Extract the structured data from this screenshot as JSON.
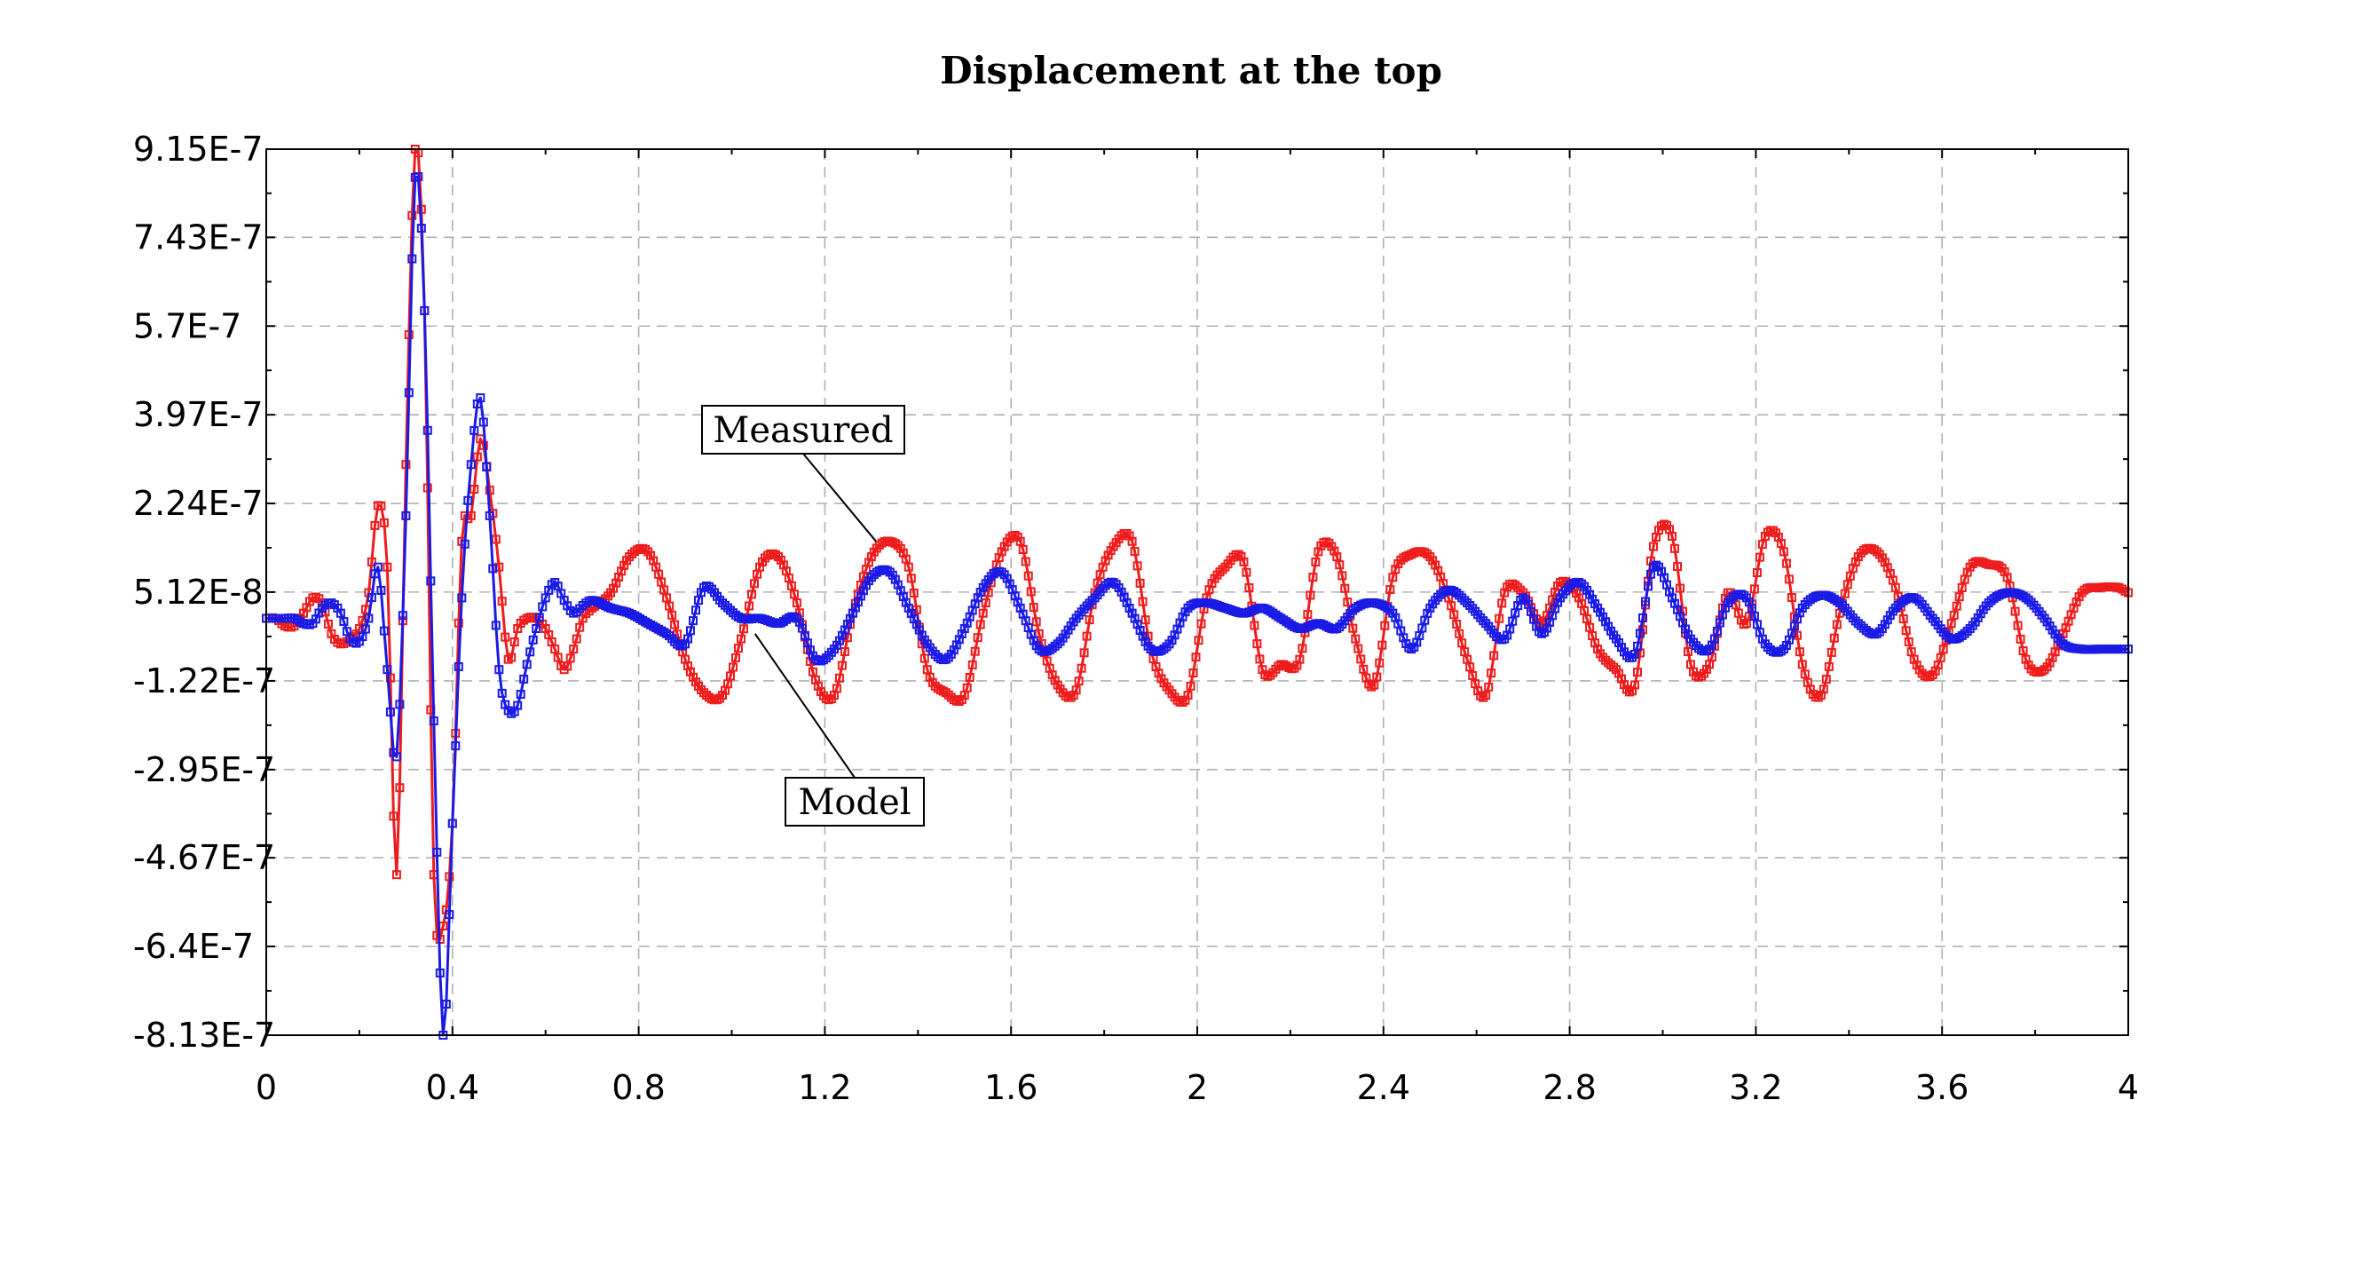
{
  "chart_data": {
    "type": "line",
    "title": "Displacement at the top",
    "xlabel": "",
    "ylabel": "",
    "xlim": [
      0,
      4
    ],
    "ylim": [
      -8.13e-07,
      9.15e-07
    ],
    "x_ticks": [
      0,
      0.4,
      0.8,
      1.2,
      1.6,
      2,
      2.4,
      2.8,
      3.2,
      3.6,
      4
    ],
    "x_tick_labels": [
      "0",
      "0.4",
      "0.8",
      "1.2",
      "1.6",
      "2",
      "2.4",
      "2.8",
      "3.2",
      "3.6",
      "4"
    ],
    "y_ticks": [
      9.15e-07,
      7.43e-07,
      5.7e-07,
      3.97e-07,
      2.24e-07,
      5.12e-08,
      -1.22e-07,
      -2.95e-07,
      -4.67e-07,
      -6.4e-07,
      -8.13e-07
    ],
    "y_tick_labels": [
      "9.15E-7",
      "7.43E-7",
      "5.7E-7",
      "3.97E-7",
      "2.24E-7",
      "5.12E-8",
      "-1.22E-7",
      "-2.95E-7",
      "-4.67E-7",
      "-6.4E-7",
      "-8.13E-7"
    ],
    "grid": true,
    "series": [
      {
        "name": "Measured",
        "color": "#ee1c1c",
        "marker": "square",
        "x": [
          0,
          0.02,
          0.04,
          0.06,
          0.08,
          0.1,
          0.12,
          0.14,
          0.16,
          0.18,
          0.2,
          0.22,
          0.24,
          0.26,
          0.28,
          0.3,
          0.32,
          0.34,
          0.36,
          0.38,
          0.4,
          0.42,
          0.44,
          0.46,
          0.48,
          0.5,
          0.52,
          0.54,
          0.56,
          0.58,
          0.6,
          0.62,
          0.64,
          0.66,
          0.68,
          0.7,
          0.74,
          0.78,
          0.82,
          0.86,
          0.9,
          0.94,
          0.98,
          1.02,
          1.06,
          1.1,
          1.14,
          1.18,
          1.22,
          1.26,
          1.3,
          1.34,
          1.38,
          1.42,
          1.46,
          1.5,
          1.54,
          1.58,
          1.62,
          1.66,
          1.7,
          1.74,
          1.78,
          1.82,
          1.86,
          1.9,
          1.94,
          1.98,
          2.02,
          2.06,
          2.1,
          2.14,
          2.18,
          2.22,
          2.26,
          2.3,
          2.34,
          2.38,
          2.42,
          2.46,
          2.5,
          2.54,
          2.58,
          2.62,
          2.66,
          2.7,
          2.74,
          2.78,
          2.82,
          2.86,
          2.9,
          2.94,
          2.98,
          3.02,
          3.06,
          3.1,
          3.14,
          3.18,
          3.22,
          3.26,
          3.3,
          3.34,
          3.38,
          3.42,
          3.46,
          3.5,
          3.54,
          3.58,
          3.62,
          3.66,
          3.7,
          3.74,
          3.78,
          3.82,
          3.86,
          3.9,
          3.94,
          3.98,
          4.0
        ],
        "y": [
          0,
          0,
          -1.5e-08,
          -1.5e-08,
          1e-08,
          4e-08,
          3e-08,
          -3e-08,
          -5e-08,
          -4e-08,
          -2e-08,
          5e-08,
          2.2e-07,
          1e-07,
          -5e-07,
          3e-07,
          9.15e-07,
          6e-07,
          -5e-07,
          -6e-07,
          -4e-07,
          1.5e-07,
          2e-07,
          3.5e-07,
          2.5e-07,
          1e-07,
          -8e-08,
          -2e-08,
          0,
          0,
          -2e-08,
          -6e-08,
          -1e-07,
          -6e-08,
          0,
          2e-08,
          5e-08,
          1.2e-07,
          1.3e-07,
          4e-08,
          -8e-08,
          -1.45e-07,
          -1.5e-07,
          -4e-08,
          1e-07,
          1.2e-07,
          3e-08,
          -1.2e-07,
          -1.5e-07,
          1e-08,
          1.2e-07,
          1.5e-07,
          1e-07,
          -1e-07,
          -1.45e-07,
          -1.5e-07,
          1e-08,
          1.3e-07,
          1.5e-07,
          -3e-08,
          -1.3e-07,
          -1.4e-07,
          5e-08,
          1.4e-07,
          1.5e-07,
          -6e-08,
          -1.4e-07,
          -1.5e-07,
          4e-08,
          1e-07,
          1.1e-07,
          -1e-07,
          -9e-08,
          -8e-08,
          1.3e-07,
          1.2e-07,
          -4e-08,
          -1.3e-07,
          8e-08,
          1.25e-07,
          1.2e-07,
          4e-08,
          -8e-08,
          -1.5e-07,
          5e-08,
          5e-08,
          -1e-08,
          7e-08,
          4e-08,
          -6e-08,
          -1e-07,
          -1.3e-07,
          1.4e-07,
          1.6e-07,
          -9e-08,
          -9e-08,
          5e-08,
          -1e-08,
          1.6e-07,
          1.3e-07,
          -9e-08,
          -1.5e-07,
          1e-08,
          1.2e-07,
          1.3e-07,
          6e-08,
          -8e-08,
          -1.1e-07,
          -1e-08,
          1e-07,
          1.05e-07,
          8e-08,
          -8e-08,
          -1e-07,
          -3e-08,
          5e-08,
          6e-08,
          6e-08,
          5e-08
        ]
      },
      {
        "name": "Model",
        "color": "#1a1ae6",
        "marker": "square",
        "x": [
          0,
          0.02,
          0.04,
          0.06,
          0.08,
          0.1,
          0.12,
          0.14,
          0.16,
          0.18,
          0.2,
          0.22,
          0.24,
          0.26,
          0.28,
          0.3,
          0.32,
          0.34,
          0.36,
          0.38,
          0.4,
          0.42,
          0.44,
          0.46,
          0.48,
          0.5,
          0.52,
          0.54,
          0.56,
          0.58,
          0.6,
          0.62,
          0.64,
          0.66,
          0.68,
          0.7,
          0.74,
          0.78,
          0.82,
          0.86,
          0.9,
          0.94,
          0.98,
          1.02,
          1.06,
          1.1,
          1.14,
          1.18,
          1.22,
          1.26,
          1.3,
          1.34,
          1.38,
          1.42,
          1.46,
          1.5,
          1.54,
          1.58,
          1.62,
          1.66,
          1.7,
          1.74,
          1.78,
          1.82,
          1.86,
          1.9,
          1.94,
          1.98,
          2.02,
          2.06,
          2.1,
          2.14,
          2.18,
          2.22,
          2.26,
          2.3,
          2.34,
          2.38,
          2.42,
          2.46,
          2.5,
          2.54,
          2.58,
          2.62,
          2.66,
          2.7,
          2.74,
          2.78,
          2.82,
          2.86,
          2.9,
          2.94,
          2.98,
          3.02,
          3.06,
          3.1,
          3.14,
          3.18,
          3.22,
          3.26,
          3.3,
          3.34,
          3.38,
          3.42,
          3.46,
          3.5,
          3.54,
          3.58,
          3.62,
          3.66,
          3.7,
          3.74,
          3.78,
          3.82,
          3.86,
          3.9,
          3.94,
          3.98,
          4.0
        ],
        "y": [
          0,
          0,
          0,
          0,
          -1e-08,
          -1e-08,
          2e-08,
          3e-08,
          1e-08,
          -4e-08,
          -4.5e-08,
          0,
          1e-07,
          -1e-07,
          -2.7e-07,
          2e-07,
          8.6e-07,
          6e-07,
          -2e-07,
          -8.13e-07,
          -4e-07,
          4e-08,
          3e-07,
          4.3e-07,
          2e-07,
          -1e-07,
          -1.8e-07,
          -1.7e-07,
          -9e-08,
          -2e-08,
          4e-08,
          7e-08,
          3.5e-08,
          1e-08,
          2.5e-08,
          3.5e-08,
          2e-08,
          1e-08,
          -1e-08,
          -3e-08,
          -5e-08,
          6e-08,
          3e-08,
          0,
          0,
          -1e-08,
          0,
          -8e-08,
          -6e-08,
          1e-08,
          8e-08,
          9e-08,
          2e-08,
          -5e-08,
          -8e-08,
          -2e-08,
          6e-08,
          9e-08,
          2e-08,
          -6e-08,
          -5e-08,
          0,
          4e-08,
          7e-08,
          1e-08,
          -6e-08,
          -5e-08,
          2e-08,
          3e-08,
          2e-08,
          1e-08,
          2e-08,
          0,
          -2e-08,
          -1e-08,
          -2e-08,
          2e-08,
          3e-08,
          1e-08,
          -6e-08,
          2e-08,
          5.5e-08,
          3e-08,
          -1e-08,
          -4e-08,
          4e-08,
          -3e-08,
          4e-08,
          7e-08,
          2e-08,
          -4e-08,
          -7e-08,
          1e-07,
          4e-08,
          -4e-08,
          -6e-08,
          3e-08,
          4e-08,
          -5e-08,
          -6e-08,
          2e-08,
          4.5e-08,
          3e-08,
          -1e-08,
          -3e-08,
          2e-08,
          4e-08,
          0,
          -4e-08,
          -2e-08,
          3e-08,
          5e-08,
          4e-08,
          0,
          -5e-08,
          -6e-08,
          -6e-08,
          -6e-08,
          -6e-08
        ]
      }
    ],
    "annotations": [
      {
        "text": "Measured",
        "series": "Measured",
        "anchor_x": 1.31,
        "anchor_y": 1.5e-07
      },
      {
        "text": "Model",
        "series": "Model",
        "anchor_x": 1.05,
        "anchor_y": -3e-08
      }
    ]
  }
}
